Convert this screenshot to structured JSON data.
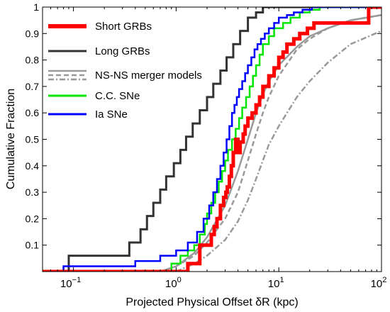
{
  "chart_data": {
    "type": "line",
    "step": true,
    "xlabel": "Projected Physical Offset δR  (kpc)",
    "ylabel": "Cumulative Fraction",
    "xscale": "log",
    "xlim": [
      0.05,
      100
    ],
    "ylim": [
      0,
      1
    ],
    "x_ticks": [
      {
        "value": 0.1,
        "base": "10",
        "exp": "−1"
      },
      {
        "value": 1,
        "base": "10",
        "exp": "0"
      },
      {
        "value": 10,
        "base": "10",
        "exp": "1"
      },
      {
        "value": 100,
        "base": "10",
        "exp": "2"
      }
    ],
    "y_ticks": [
      "0.1",
      "0.2",
      "0.3",
      "0.4",
      "0.5",
      "0.6",
      "0.7",
      "0.8",
      "0.9",
      "1"
    ],
    "grid": false,
    "legend_position": "top-left",
    "series": [
      {
        "name": "Short GRBs",
        "color": "#ff0000",
        "style": "step",
        "x": [
          1.3,
          1.7,
          2.2,
          2.35,
          2.5,
          2.7,
          2.9,
          3.05,
          3.15,
          3.3,
          3.45,
          3.6,
          3.8,
          4.0,
          4.2,
          4.5,
          4.7,
          5.0,
          5.5,
          6.0,
          6.5,
          7.0,
          8.0,
          9.0,
          10.0,
          11.0,
          12.0,
          14.0,
          16.0,
          19.0,
          22.0,
          75.0
        ],
        "y": [
          0.03,
          0.1,
          0.14,
          0.17,
          0.2,
          0.25,
          0.28,
          0.3,
          0.32,
          0.36,
          0.4,
          0.45,
          0.5,
          0.45,
          0.49,
          0.52,
          0.55,
          0.58,
          0.6,
          0.63,
          0.66,
          0.7,
          0.74,
          0.77,
          0.81,
          0.83,
          0.86,
          0.88,
          0.9,
          0.92,
          0.94,
          1.0
        ]
      },
      {
        "name": "Long GRBs",
        "color": "#333333",
        "style": "step",
        "x": [
          0.09,
          0.35,
          0.45,
          0.52,
          0.6,
          0.7,
          0.8,
          0.95,
          1.1,
          1.25,
          1.45,
          1.7,
          2.0,
          2.3,
          2.7,
          3.1,
          3.6,
          4.2,
          5.0,
          6.0,
          7.0
        ],
        "y": [
          0.06,
          0.11,
          0.16,
          0.21,
          0.26,
          0.31,
          0.36,
          0.41,
          0.46,
          0.51,
          0.56,
          0.61,
          0.66,
          0.71,
          0.76,
          0.81,
          0.86,
          0.91,
          0.96,
          0.98,
          1.0
        ]
      },
      {
        "name": "C.C. SNe",
        "color": "#00e600",
        "style": "step",
        "x": [
          0.9,
          1.1,
          1.3,
          1.5,
          1.7,
          1.9,
          2.0,
          2.2,
          2.4,
          2.6,
          2.8,
          3.0,
          3.2,
          3.5,
          3.8,
          4.1,
          4.4,
          4.8,
          5.2,
          5.6,
          6.0,
          6.5,
          7.0,
          8.0,
          9.0,
          11.0,
          13.0,
          16.0,
          20.0,
          25.0
        ],
        "y": [
          0.03,
          0.06,
          0.08,
          0.1,
          0.14,
          0.18,
          0.22,
          0.26,
          0.3,
          0.34,
          0.38,
          0.42,
          0.46,
          0.5,
          0.54,
          0.58,
          0.62,
          0.66,
          0.7,
          0.74,
          0.78,
          0.82,
          0.86,
          0.89,
          0.92,
          0.94,
          0.96,
          0.98,
          0.99,
          1.0
        ]
      },
      {
        "name": "Ia SNe",
        "color": "#0000ff",
        "style": "step",
        "x": [
          0.08,
          0.4,
          0.7,
          1.0,
          1.3,
          1.6,
          1.85,
          2.1,
          2.3,
          2.5,
          2.7,
          2.9,
          3.1,
          3.3,
          3.5,
          3.7,
          3.9,
          4.1,
          4.4,
          4.7,
          5.0,
          5.4,
          5.8,
          6.2,
          6.7,
          7.3,
          8.0,
          9.0,
          10.0,
          12.0,
          14.0,
          17.0,
          21.0
        ],
        "y": [
          0.02,
          0.04,
          0.06,
          0.08,
          0.11,
          0.15,
          0.2,
          0.25,
          0.3,
          0.35,
          0.4,
          0.45,
          0.5,
          0.55,
          0.6,
          0.63,
          0.66,
          0.69,
          0.72,
          0.75,
          0.78,
          0.81,
          0.84,
          0.86,
          0.88,
          0.9,
          0.92,
          0.94,
          0.96,
          0.97,
          0.98,
          0.99,
          1.0
        ]
      },
      {
        "name": "NS-NS merger models",
        "color": "#999999",
        "style": "solid",
        "x": [
          0.7,
          1.0,
          1.5,
          2.0,
          3.0,
          4.0,
          5.0,
          6.0,
          7.0,
          8.0,
          10.0,
          15.0,
          20.0,
          30.0,
          50.0,
          100.0
        ],
        "y": [
          0.0,
          0.02,
          0.07,
          0.13,
          0.25,
          0.38,
          0.5,
          0.6,
          0.67,
          0.72,
          0.78,
          0.85,
          0.89,
          0.92,
          0.95,
          0.97
        ]
      },
      {
        "name": "",
        "color": "#999999",
        "style": "dashed",
        "x": [
          0.7,
          1.0,
          1.5,
          2.0,
          3.0,
          4.0,
          5.0,
          6.0,
          7.0,
          8.0,
          10.0,
          15.0,
          20.0,
          30.0,
          50.0,
          100.0
        ],
        "y": [
          0.0,
          0.02,
          0.06,
          0.11,
          0.2,
          0.3,
          0.42,
          0.52,
          0.6,
          0.66,
          0.74,
          0.84,
          0.88,
          0.92,
          0.95,
          0.97
        ]
      },
      {
        "name": "",
        "color": "#999999",
        "style": "dashdot",
        "x": [
          1.0,
          1.5,
          2.0,
          3.0,
          4.0,
          5.0,
          6.0,
          7.0,
          8.0,
          10.0,
          15.0,
          20.0,
          30.0,
          50.0,
          100.0
        ],
        "y": [
          0.0,
          0.03,
          0.06,
          0.12,
          0.19,
          0.27,
          0.35,
          0.42,
          0.48,
          0.55,
          0.66,
          0.72,
          0.79,
          0.86,
          0.91
        ]
      }
    ],
    "legend": [
      {
        "label": "Short GRBs",
        "color": "#ff0000",
        "style": "thick"
      },
      {
        "label": "Long GRBs",
        "color": "#333333",
        "style": "solid"
      },
      {
        "label": "NS-NS merger models",
        "color": "#999999",
        "style": "triple"
      },
      {
        "label": "C.C. SNe",
        "color": "#00e600",
        "style": "solid"
      },
      {
        "label": "Ia SNe",
        "color": "#0000ff",
        "style": "solid"
      }
    ]
  }
}
